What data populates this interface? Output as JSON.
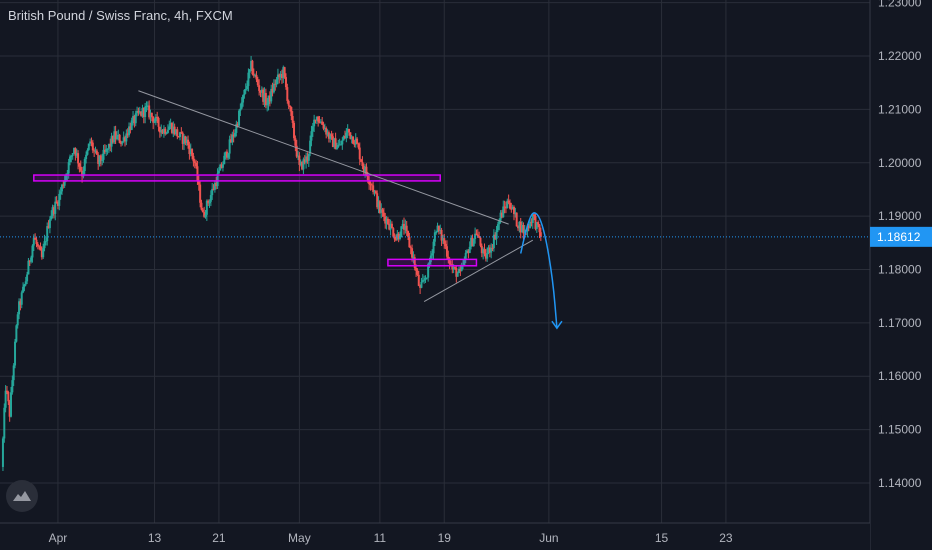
{
  "chart_data": {
    "type": "candlestick",
    "title": "British Pound / Swiss Franc, 4h, FXCM",
    "y_axis": {
      "ticks": [
        "1.23000",
        "1.22000",
        "1.21000",
        "1.20000",
        "1.19000",
        "1.18000",
        "1.17000",
        "1.16000",
        "1.15000",
        "1.14000"
      ],
      "tick_values": [
        1.23,
        1.22,
        1.21,
        1.2,
        1.19,
        1.18,
        1.17,
        1.16,
        1.15,
        1.14
      ],
      "range": [
        1.1325,
        1.2305
      ]
    },
    "x_axis": {
      "ticks": [
        "Apr",
        "13",
        "21",
        "May",
        "11",
        "19",
        "Jun",
        "15",
        "23"
      ],
      "tick_days": [
        0,
        12,
        20,
        30,
        40,
        48,
        61,
        75,
        83
      ],
      "range_days": [
        -7.2,
        100.9
      ]
    },
    "current_price": {
      "value": 1.18612,
      "label": "1.18612"
    },
    "colors": {
      "up": "#26a69a",
      "down": "#ef5350",
      "background": "#131722",
      "grid": "#2a2e39",
      "axis_text": "#b2b5be",
      "current": "#2196f3",
      "zone": "#d500f9",
      "trendline": "#9598a1",
      "projection": "#2196f3"
    },
    "anchors": [
      [
        -7,
        1.143
      ],
      [
        -6.5,
        1.158
      ],
      [
        -6,
        1.153
      ],
      [
        -5,
        1.172
      ],
      [
        -4,
        1.178
      ],
      [
        -3,
        1.186
      ],
      [
        -2,
        1.182
      ],
      [
        -1,
        1.19
      ],
      [
        0,
        1.193
      ],
      [
        1,
        1.198
      ],
      [
        2,
        1.203
      ],
      [
        3,
        1.198
      ],
      [
        4,
        1.204
      ],
      [
        5,
        1.2
      ],
      [
        6,
        1.202
      ],
      [
        7,
        1.205
      ],
      [
        8,
        1.204
      ],
      [
        9,
        1.207
      ],
      [
        10,
        1.209
      ],
      [
        11,
        1.21
      ],
      [
        12,
        1.208
      ],
      [
        13,
        1.206
      ],
      [
        14,
        1.207
      ],
      [
        15,
        1.205
      ],
      [
        16,
        1.204
      ],
      [
        17,
        1.2
      ],
      [
        18,
        1.19
      ],
      [
        19,
        1.194
      ],
      [
        20,
        1.198
      ],
      [
        21,
        1.202
      ],
      [
        22,
        1.206
      ],
      [
        23,
        1.212
      ],
      [
        24,
        1.218
      ],
      [
        25,
        1.214
      ],
      [
        26,
        1.211
      ],
      [
        27,
        1.215
      ],
      [
        28,
        1.217
      ],
      [
        29,
        1.208
      ],
      [
        30,
        1.199
      ],
      [
        31,
        1.201
      ],
      [
        32,
        1.209
      ],
      [
        33,
        1.207
      ],
      [
        34,
        1.204
      ],
      [
        35,
        1.203
      ],
      [
        36,
        1.206
      ],
      [
        37,
        1.204
      ],
      [
        38,
        1.199
      ],
      [
        39,
        1.196
      ],
      [
        40,
        1.191
      ],
      [
        41,
        1.189
      ],
      [
        42,
        1.186
      ],
      [
        43,
        1.188
      ],
      [
        44,
        1.183
      ],
      [
        45,
        1.176
      ],
      [
        46,
        1.18
      ],
      [
        47,
        1.188
      ],
      [
        48,
        1.185
      ],
      [
        49,
        1.18
      ],
      [
        50,
        1.179
      ],
      [
        51,
        1.184
      ],
      [
        52,
        1.187
      ],
      [
        53,
        1.182
      ],
      [
        54,
        1.185
      ],
      [
        55,
        1.19
      ],
      [
        56,
        1.193
      ],
      [
        57,
        1.189
      ],
      [
        58,
        1.187
      ],
      [
        59,
        1.19
      ],
      [
        60,
        1.1861
      ]
    ],
    "annotations": {
      "resistance_zone": {
        "x": [
          -3,
          47.5
        ],
        "y": [
          1.1966,
          1.1977
        ]
      },
      "support_zone": {
        "x": [
          41,
          52
        ],
        "y": [
          1.1807,
          1.1819
        ]
      },
      "descending_trendline": {
        "from": [
          10,
          1.2135
        ],
        "to": [
          56,
          1.1885
        ]
      },
      "ascending_trendline": {
        "from": [
          45.5,
          1.174
        ],
        "to": [
          59,
          1.1855
        ]
      },
      "projection_path": [
        [
          57.5,
          1.183
        ],
        [
          58.5,
          1.19
        ],
        [
          59.5,
          1.191
        ],
        [
          60.5,
          1.187
        ],
        [
          61.5,
          1.178
        ],
        [
          62,
          1.169
        ]
      ]
    }
  }
}
